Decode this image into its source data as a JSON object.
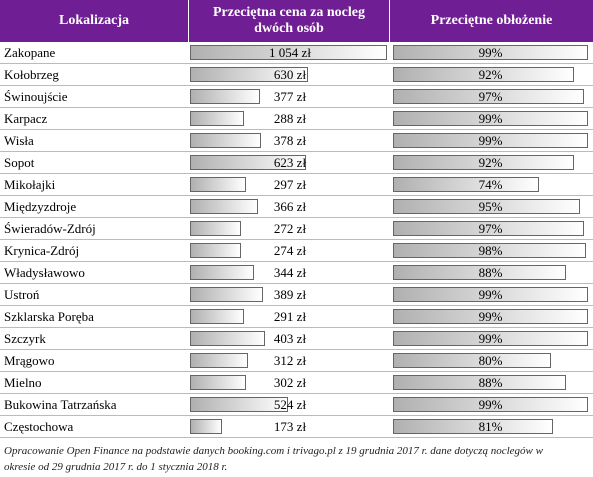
{
  "table": {
    "headers": [
      "Lokalizacja",
      "Przeciętna cena za nocleg dwóch osób",
      "Przeciętne obłożenie"
    ],
    "rows": [
      [
        "Zakopane",
        {
          "value": 1054,
          "label": "1 054 zł"
        },
        {
          "value": 99,
          "label": "99%"
        }
      ],
      [
        "Kołobrzeg",
        {
          "value": 630,
          "label": "630 zł"
        },
        {
          "value": 92,
          "label": "92%"
        }
      ],
      [
        "Świnoujście",
        {
          "value": 377,
          "label": "377 zł"
        },
        {
          "value": 97,
          "label": "97%"
        }
      ],
      [
        "Karpacz",
        {
          "value": 288,
          "label": "288 zł"
        },
        {
          "value": 99,
          "label": "99%"
        }
      ],
      [
        "Wisła",
        {
          "value": 378,
          "label": "378 zł"
        },
        {
          "value": 99,
          "label": "99%"
        }
      ],
      [
        "Sopot",
        {
          "value": 623,
          "label": "623 zł"
        },
        {
          "value": 92,
          "label": "92%"
        }
      ],
      [
        "Mikołajki",
        {
          "value": 297,
          "label": "297 zł"
        },
        {
          "value": 74,
          "label": "74%"
        }
      ],
      [
        "Międzyzdroje",
        {
          "value": 366,
          "label": "366 zł"
        },
        {
          "value": 95,
          "label": "95%"
        }
      ],
      [
        "Świeradów-Zdrój",
        {
          "value": 272,
          "label": "272 zł"
        },
        {
          "value": 97,
          "label": "97%"
        }
      ],
      [
        "Krynica-Zdrój",
        {
          "value": 274,
          "label": "274 zł"
        },
        {
          "value": 98,
          "label": "98%"
        }
      ],
      [
        "Władysławowo",
        {
          "value": 344,
          "label": "344 zł"
        },
        {
          "value": 88,
          "label": "88%"
        }
      ],
      [
        "Ustroń",
        {
          "value": 389,
          "label": "389 zł"
        },
        {
          "value": 99,
          "label": "99%"
        }
      ],
      [
        "Szklarska Poręba",
        {
          "value": 291,
          "label": "291 zł"
        },
        {
          "value": 99,
          "label": "99%"
        }
      ],
      [
        "Szczyrk",
        {
          "value": 403,
          "label": "403 zł"
        },
        {
          "value": 99,
          "label": "99%"
        }
      ],
      [
        "Mrągowo",
        {
          "value": 312,
          "label": "312 zł"
        },
        {
          "value": 80,
          "label": "80%"
        }
      ],
      [
        "Mielno",
        {
          "value": 302,
          "label": "302 zł"
        },
        {
          "value": 88,
          "label": "88%"
        }
      ],
      [
        "Bukowina Tatrzańska",
        {
          "value": 524,
          "label": "524 zł"
        },
        {
          "value": 99,
          "label": "99%"
        }
      ],
      [
        "Częstochowa",
        {
          "value": 173,
          "label": "173 zł"
        },
        {
          "value": 81,
          "label": "81%"
        }
      ]
    ]
  },
  "footnote": "Opracowanie Open Finance na podstawie danych booking.com i trivago.pl z 19 grudnia 2017 r. dane dotyczą noclegów w okresie od 29 grudnia 2017 r. do 1 stycznia 2018 r."
}
